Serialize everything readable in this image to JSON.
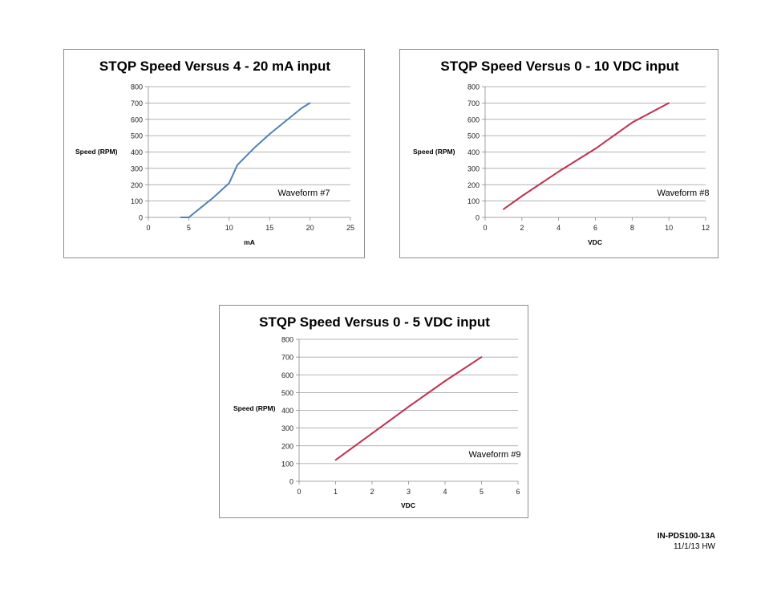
{
  "chart_data": [
    {
      "type": "line",
      "title": "STQP Speed Versus 4 - 20 mA input",
      "xlabel": "mA",
      "ylabel": "Speed (RPM)",
      "xlim": [
        0,
        25
      ],
      "ylim": [
        0,
        800
      ],
      "xticks": [
        "0",
        "5",
        "10",
        "15",
        "20",
        "25"
      ],
      "yticks": [
        "0",
        "100",
        "200",
        "300",
        "400",
        "500",
        "600",
        "700",
        "800"
      ],
      "annotation": "Waveform  #7",
      "grid": true,
      "color": "#4f81bd",
      "series": [
        {
          "x": [
            4,
            5,
            8,
            10,
            11,
            13,
            15,
            19,
            20
          ],
          "y": [
            0,
            0,
            120,
            210,
            320,
            420,
            510,
            670,
            700
          ]
        }
      ]
    },
    {
      "type": "line",
      "title": "STQP Speed Versus 0 - 10 VDC input",
      "xlabel": "VDC",
      "ylabel": "Speed (RPM)",
      "xlim": [
        0,
        12
      ],
      "ylim": [
        0,
        800
      ],
      "xticks": [
        "0",
        "2",
        "4",
        "6",
        "8",
        "10",
        "12"
      ],
      "yticks": [
        "0",
        "100",
        "200",
        "300",
        "400",
        "500",
        "600",
        "700",
        "800"
      ],
      "annotation": "Waveform  #8",
      "grid": true,
      "color": "#c0304e",
      "series": [
        {
          "x": [
            1,
            2,
            4,
            6,
            8,
            10
          ],
          "y": [
            50,
            130,
            280,
            420,
            580,
            700
          ]
        }
      ]
    },
    {
      "type": "line",
      "title": "STQP Speed Versus 0 - 5 VDC input",
      "xlabel": "VDC",
      "ylabel": "Speed (RPM)",
      "xlim": [
        0,
        6
      ],
      "ylim": [
        0,
        800
      ],
      "xticks": [
        "0",
        "1",
        "2",
        "3",
        "4",
        "5",
        "6"
      ],
      "yticks": [
        "0",
        "100",
        "200",
        "300",
        "400",
        "500",
        "600",
        "700",
        "800"
      ],
      "annotation": "Waveform  #9",
      "grid": true,
      "color": "#c0304e",
      "series": [
        {
          "x": [
            1,
            2,
            3,
            4,
            5
          ],
          "y": [
            120,
            270,
            420,
            565,
            700
          ]
        }
      ]
    }
  ],
  "footer": {
    "doc_id": "IN-PDS100-13A",
    "date": "11/1/13 HW"
  }
}
